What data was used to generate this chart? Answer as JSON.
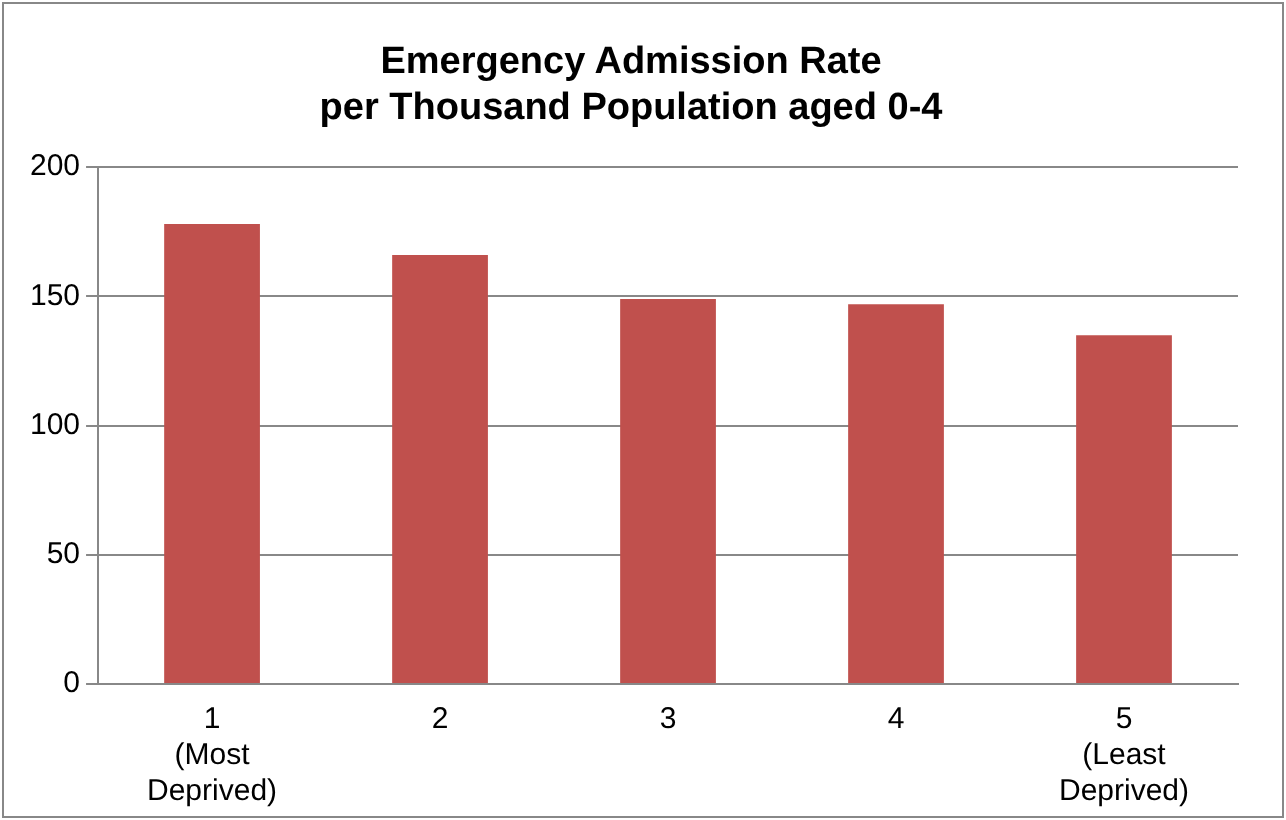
{
  "chart_data": {
    "type": "bar",
    "title": "Emergency Admission Rate\nper Thousand Population aged 0-4",
    "categories": [
      "1\n(Most\nDeprived)",
      "2",
      "3",
      "4",
      "5\n(Least\nDeprived)"
    ],
    "values": [
      178,
      166,
      149,
      147,
      135
    ],
    "color": "#c0504d",
    "ylim": [
      0,
      200
    ],
    "yticks": [
      0,
      50,
      100,
      150,
      200
    ],
    "grid": "y",
    "legend": false
  }
}
